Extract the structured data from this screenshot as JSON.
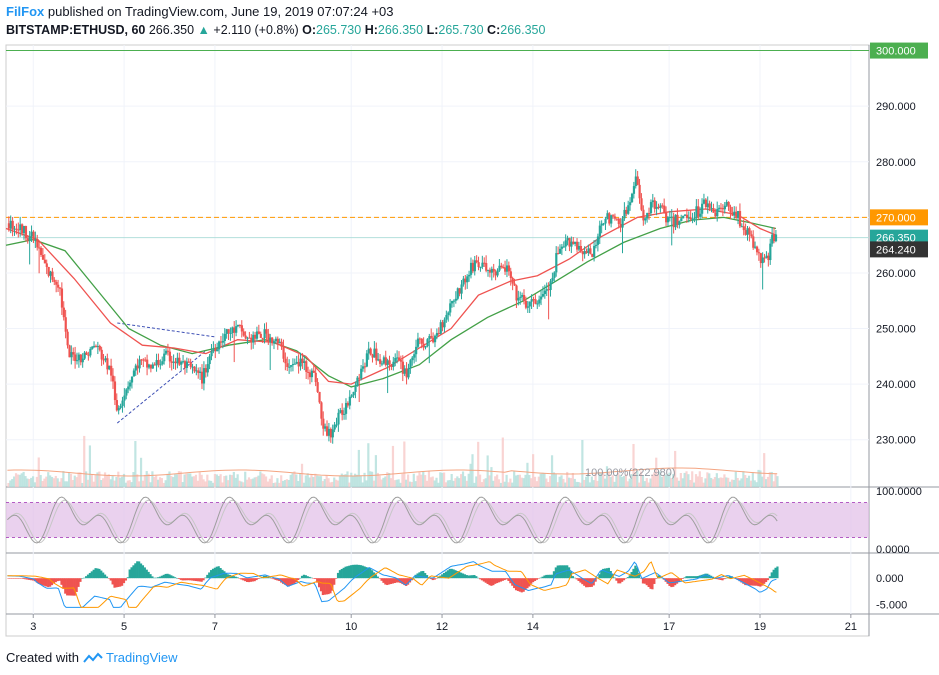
{
  "header": {
    "author": "FilFox",
    "published_text": "published on TradingView.com, June 19, 2019 07:07:24 +03",
    "symbol": "BITSTAMP:ETHUSD, 60",
    "last_price": "266.350",
    "change": "+2.110 (+0.8%)",
    "open_label": "O:",
    "open_value": "265.730",
    "high_label": "H:",
    "high_value": "266.350",
    "low_label": "L:",
    "low_value": "265.730",
    "close_label": "C:",
    "close_value": "266.350"
  },
  "footer": {
    "created_with": "Created with",
    "brand": "TradingView"
  },
  "colors": {
    "up": "#26a69a",
    "down": "#ef5350",
    "ema_fast": "#ef5350",
    "ema_slow": "#43a047",
    "level": "#ff9800",
    "top_line": "#4caf50",
    "pattern": "#3f51b5",
    "rsi_band": "#e1bee7",
    "rsi_line": "#9e9e9e",
    "macd": "#2196f3",
    "signal": "#ff9800"
  },
  "chart_data": {
    "type": "candlestick",
    "price_axis": {
      "ticks": [
        "300.000",
        "290.000",
        "280.000",
        "270.000",
        "260.000",
        "250.000",
        "240.000",
        "230.000"
      ],
      "values": [
        300,
        290,
        280,
        270,
        260,
        250,
        240,
        230
      ],
      "ylim": [
        221.5,
        301
      ]
    },
    "price_labels": [
      {
        "text": "300.000",
        "value": 300,
        "color": "#4caf50"
      },
      {
        "text": "270.000",
        "value": 270,
        "color": "#ff9800"
      },
      {
        "text": "266.350",
        "value": 266.35,
        "color": "#26a69a"
      },
      {
        "text": "264.240",
        "value": 264.24,
        "color": "#333333"
      }
    ],
    "horizontal_lines": [
      {
        "value": 300,
        "style": "solid",
        "color": "#4caf50"
      },
      {
        "value": 270,
        "style": "dashed",
        "color": "#ff9800"
      },
      {
        "value": 266.35,
        "style": "solid",
        "color": "#b2dfdb"
      }
    ],
    "x_axis": {
      "labels": [
        "3",
        "5",
        "7",
        "10",
        "12",
        "14",
        "17",
        "19",
        "21"
      ],
      "positions": [
        1.5,
        3.5,
        5.5,
        8.5,
        10.5,
        12.5,
        15.5,
        17.5,
        19.5
      ],
      "xlim": [
        0.9,
        19.9
      ]
    },
    "close_path": [
      [
        0.9,
        269
      ],
      [
        1.2,
        268
      ],
      [
        1.5,
        266
      ],
      [
        1.8,
        260
      ],
      [
        2.05,
        258
      ],
      [
        2.25,
        245
      ],
      [
        2.6,
        245
      ],
      [
        2.85,
        247
      ],
      [
        3.2,
        242
      ],
      [
        3.3,
        235
      ],
      [
        3.5,
        239
      ],
      [
        3.8,
        244
      ],
      [
        4.1,
        243
      ],
      [
        4.4,
        245
      ],
      [
        4.9,
        243
      ],
      [
        5.2,
        241
      ],
      [
        5.4,
        246
      ],
      [
        5.7,
        249
      ],
      [
        6.0,
        250
      ],
      [
        6.2,
        248
      ],
      [
        6.6,
        249
      ],
      [
        6.9,
        247
      ],
      [
        7.1,
        243
      ],
      [
        7.4,
        244
      ],
      [
        7.7,
        241
      ],
      [
        7.85,
        232
      ],
      [
        8.0,
        231
      ],
      [
        8.35,
        236
      ],
      [
        8.6,
        241
      ],
      [
        8.9,
        246
      ],
      [
        9.2,
        244
      ],
      [
        9.5,
        244
      ],
      [
        9.7,
        242
      ],
      [
        9.9,
        247
      ],
      [
        10.3,
        248
      ],
      [
        10.7,
        255
      ],
      [
        11.0,
        259
      ],
      [
        11.2,
        262
      ],
      [
        11.6,
        260
      ],
      [
        11.9,
        261
      ],
      [
        12.1,
        256
      ],
      [
        12.4,
        254
      ],
      [
        12.7,
        256
      ],
      [
        12.9,
        258
      ],
      [
        13.0,
        263
      ],
      [
        13.3,
        266
      ],
      [
        13.6,
        264
      ],
      [
        13.8,
        263
      ],
      [
        14.0,
        270
      ],
      [
        14.4,
        269
      ],
      [
        14.6,
        272
      ],
      [
        14.75,
        277
      ],
      [
        14.9,
        270
      ],
      [
        15.2,
        273
      ],
      [
        15.5,
        269
      ],
      [
        15.8,
        270
      ],
      [
        16.1,
        271
      ],
      [
        16.3,
        273
      ],
      [
        16.5,
        271
      ],
      [
        16.8,
        272
      ],
      [
        17.0,
        270
      ],
      [
        17.2,
        267
      ],
      [
        17.4,
        264
      ],
      [
        17.5,
        262
      ],
      [
        17.65,
        263
      ],
      [
        17.75,
        266
      ],
      [
        17.85,
        266.35
      ]
    ],
    "ema_fast": [
      [
        0.9,
        268
      ],
      [
        1.6,
        266
      ],
      [
        2.4,
        259
      ],
      [
        3.2,
        251
      ],
      [
        3.9,
        247
      ],
      [
        4.6,
        246.5
      ],
      [
        5.3,
        245.5
      ],
      [
        6.0,
        248
      ],
      [
        6.8,
        247.5
      ],
      [
        7.5,
        245
      ],
      [
        8.0,
        240.5
      ],
      [
        8.5,
        240
      ],
      [
        9.3,
        243
      ],
      [
        10.0,
        246.5
      ],
      [
        10.7,
        250
      ],
      [
        11.3,
        256
      ],
      [
        12.0,
        258.5
      ],
      [
        12.6,
        259.5
      ],
      [
        13.3,
        262.5
      ],
      [
        14.0,
        266.5
      ],
      [
        14.8,
        270
      ],
      [
        15.5,
        271
      ],
      [
        16.3,
        271.5
      ],
      [
        17.0,
        270.5
      ],
      [
        17.5,
        268
      ],
      [
        17.85,
        266.8
      ]
    ],
    "ema_slow": [
      [
        0.9,
        265
      ],
      [
        1.5,
        266
      ],
      [
        2.2,
        264
      ],
      [
        2.9,
        257
      ],
      [
        3.6,
        250
      ],
      [
        4.3,
        247
      ],
      [
        5.0,
        245.5
      ],
      [
        5.8,
        247
      ],
      [
        6.6,
        248
      ],
      [
        7.3,
        246
      ],
      [
        8.0,
        241.5
      ],
      [
        8.5,
        239.5
      ],
      [
        9.2,
        241
      ],
      [
        10.0,
        243.5
      ],
      [
        10.7,
        248
      ],
      [
        11.5,
        252
      ],
      [
        12.3,
        255
      ],
      [
        13.0,
        258.5
      ],
      [
        13.7,
        262
      ],
      [
        14.5,
        265.5
      ],
      [
        15.3,
        268
      ],
      [
        16.0,
        269.5
      ],
      [
        16.7,
        270
      ],
      [
        17.3,
        269
      ],
      [
        17.85,
        268
      ]
    ],
    "pattern_lines": [
      {
        "from": [
          3.35,
          251
        ],
        "to": [
          5.5,
          248.5
        ]
      },
      {
        "from": [
          3.35,
          233
        ],
        "to": [
          5.3,
          246
        ]
      }
    ],
    "volume_label": "100.00%(222.980)",
    "rsi": {
      "axis_ticks": [
        "100.0000",
        "0.0000"
      ],
      "upper": 80,
      "lower": 20,
      "ylim": [
        0,
        100
      ]
    },
    "macd": {
      "axis_ticks": [
        "0.000",
        "-5.000"
      ],
      "ylim": [
        -6,
        4
      ]
    }
  }
}
